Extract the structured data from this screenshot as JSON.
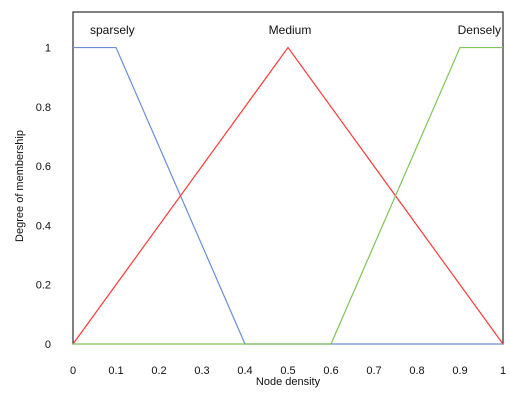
{
  "chart_data": {
    "type": "line",
    "title": "",
    "xlabel": "Node density",
    "ylabel": "Degree of membership",
    "xlim": [
      0,
      1
    ],
    "ylim": [
      0,
      1.12
    ],
    "x_ticks": [
      0,
      0.1,
      0.2,
      0.3,
      0.4,
      0.5,
      0.6,
      0.7,
      0.8,
      0.9,
      1
    ],
    "x_tick_labels": [
      "0",
      "0.1",
      "0.2",
      "0.3",
      "0.4",
      "0.5",
      "0.6",
      "0.7",
      "0.8",
      "0.9",
      "1"
    ],
    "y_ticks": [
      0,
      0.2,
      0.4,
      0.6,
      0.8,
      1
    ],
    "y_tick_labels": [
      "0",
      "0.2",
      "0.4",
      "0.6",
      "0.8",
      "1"
    ],
    "grid": false,
    "series": [
      {
        "name": "sparsely",
        "color": "#6a8fd4",
        "x": [
          0,
          0.1,
          0.4,
          1
        ],
        "y": [
          1,
          1,
          0,
          0
        ],
        "label_pos": "top-left"
      },
      {
        "name": "Medium",
        "color": "#ff3a3a",
        "x": [
          0,
          0.5,
          1
        ],
        "y": [
          0,
          1,
          0
        ],
        "label_pos": "top-center"
      },
      {
        "name": "Densely",
        "color": "#7fc45a",
        "x": [
          0,
          0.6,
          0.9,
          1
        ],
        "y": [
          0,
          0,
          1,
          1
        ],
        "label_pos": "top-right"
      }
    ]
  }
}
